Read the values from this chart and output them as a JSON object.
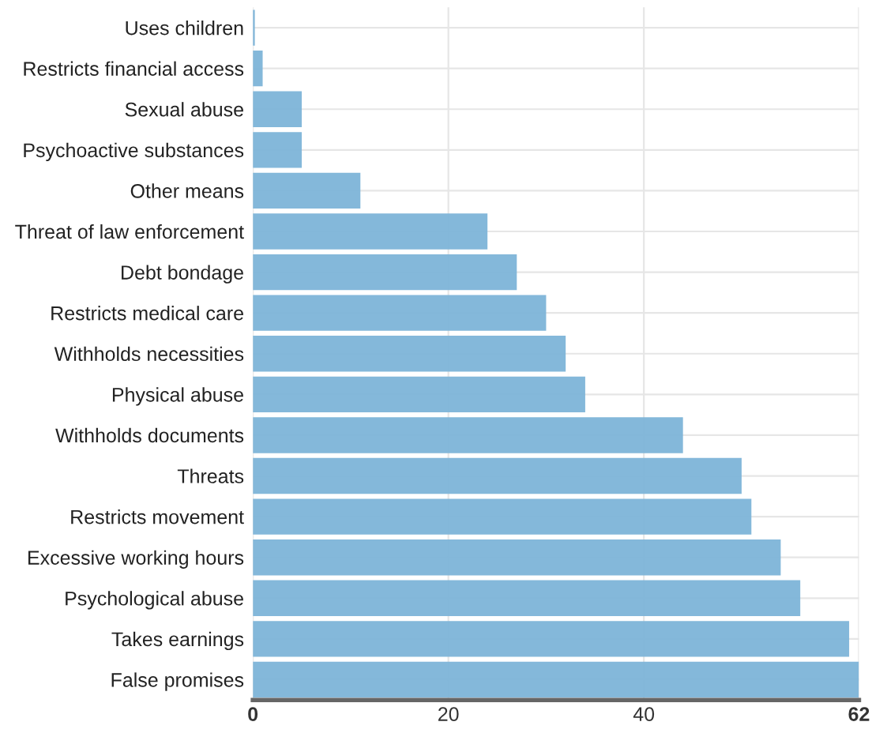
{
  "chart_data": {
    "type": "bar",
    "orientation": "horizontal",
    "categories": [
      "Uses children",
      "Restricts financial access",
      "Sexual abuse",
      "Psychoactive substances",
      "Other means",
      "Threat of law enforcement",
      "Debt bondage",
      "Restricts medical care",
      "Withholds necessities",
      "Physical abuse",
      "Withholds documents",
      "Threats",
      "Restricts movement",
      "Excessive working hours",
      "Psychological abuse",
      "Takes earnings",
      "False promises"
    ],
    "values": [
      0.2,
      1,
      5,
      5,
      11,
      24,
      27,
      30,
      32,
      34,
      44,
      50,
      51,
      54,
      56,
      61,
      62
    ],
    "color": "#7db4d8",
    "xlim": [
      0,
      62
    ],
    "xticks": [
      0,
      20,
      40,
      62
    ],
    "grid": true
  }
}
